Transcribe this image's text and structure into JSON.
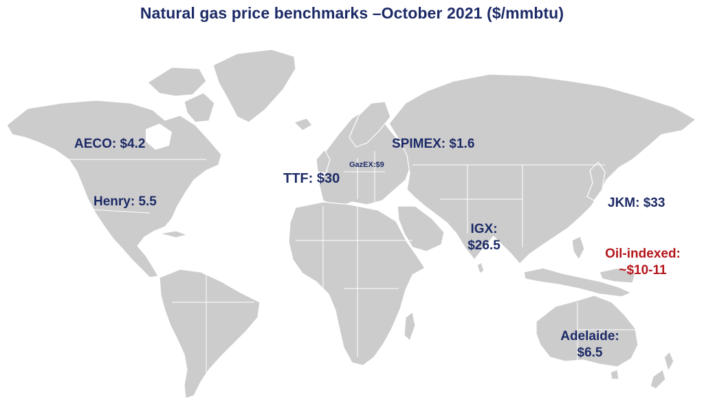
{
  "title": "Natural gas price benchmarks –October 2021 ($/mmbtu)",
  "colors": {
    "title": "#1c2a66",
    "label": "#1c2a66",
    "oil_indexed": "#b4161c",
    "land": "#cccccc",
    "background": "#ffffff"
  },
  "labels": {
    "aeco": "AECO: $4.2",
    "henry": "Henry: 5.5",
    "ttf": "TTF: $30",
    "gazex": "GazEX:$9",
    "spimex": "SPIMEX: $1.6",
    "igx_name": "IGX:",
    "igx_value": "$26.5",
    "jkm": "JKM: $33",
    "oil_name": "Oil-indexed:",
    "oil_value": "~$10-11",
    "adelaide_name": "Adelaide:",
    "adelaide_value": "$6.5"
  }
}
